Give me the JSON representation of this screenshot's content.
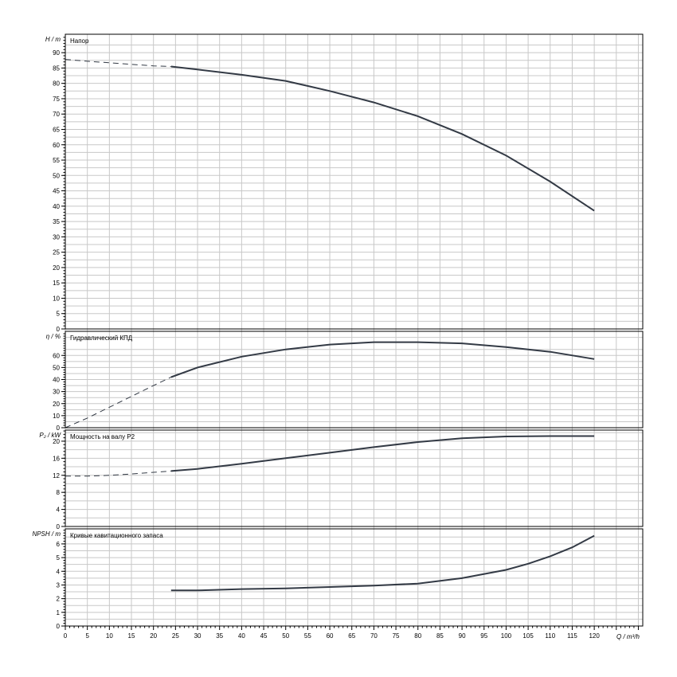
{
  "chart_data": [
    {
      "type": "line",
      "title": "Напор",
      "ylabel": "H / m",
      "ylim": [
        0,
        96
      ],
      "yticks": [
        0,
        5,
        10,
        15,
        20,
        25,
        30,
        35,
        40,
        45,
        50,
        55,
        60,
        65,
        70,
        75,
        80,
        85,
        90
      ],
      "series": [
        {
          "style": "dashed",
          "x": [
            0,
            5,
            10,
            15,
            20,
            24
          ],
          "y": [
            87.8,
            87.2,
            86.7,
            86.2,
            85.7,
            85.5
          ]
        },
        {
          "style": "solid",
          "x": [
            24,
            30,
            40,
            50,
            60,
            70,
            80,
            90,
            100,
            110,
            120
          ],
          "y": [
            85.5,
            84.5,
            82.8,
            80.8,
            77.5,
            73.8,
            69.3,
            63.5,
            56.5,
            48.0,
            38.5
          ]
        }
      ]
    },
    {
      "type": "line",
      "title": "Гидравлический КПД",
      "ylabel": "η / %",
      "ylim": [
        0,
        80
      ],
      "yticks": [
        0,
        10,
        20,
        30,
        40,
        50,
        60
      ],
      "series": [
        {
          "style": "dashed",
          "x": [
            0,
            5,
            10,
            15,
            20,
            24
          ],
          "y": [
            0,
            8,
            17,
            26,
            35,
            42
          ]
        },
        {
          "style": "solid",
          "x": [
            24,
            30,
            40,
            50,
            60,
            70,
            80,
            90,
            100,
            110,
            120
          ],
          "y": [
            42,
            50,
            59,
            65,
            69,
            71,
            71,
            70,
            67,
            63,
            57
          ]
        }
      ]
    },
    {
      "type": "line",
      "title": "Мощность на валу P2",
      "ylabel": "P₂ / kW",
      "ylim": [
        0,
        22.6
      ],
      "yticks": [
        0,
        4,
        8,
        12,
        16,
        20
      ],
      "series": [
        {
          "style": "dashed",
          "x": [
            0,
            5,
            10,
            15,
            20,
            24
          ],
          "y": [
            11.8,
            11.8,
            12.0,
            12.3,
            12.7,
            13.0
          ]
        },
        {
          "style": "solid",
          "x": [
            24,
            30,
            40,
            50,
            60,
            70,
            80,
            90,
            100,
            110,
            120
          ],
          "y": [
            13.0,
            13.5,
            14.7,
            16.0,
            17.3,
            18.6,
            19.8,
            20.7,
            21.1,
            21.2,
            21.2
          ]
        }
      ]
    },
    {
      "type": "line",
      "title": "Кривые кавитационного запаса",
      "ylabel": "NPSH / m",
      "ylim": [
        0,
        7.1
      ],
      "yticks": [
        0,
        1,
        2,
        3,
        4,
        5,
        6
      ],
      "series": [
        {
          "style": "solid",
          "x": [
            24,
            30,
            40,
            50,
            60,
            70,
            80,
            90,
            100,
            105,
            110,
            115,
            120
          ],
          "y": [
            2.6,
            2.6,
            2.7,
            2.75,
            2.85,
            2.95,
            3.1,
            3.5,
            4.1,
            4.55,
            5.1,
            5.75,
            6.6
          ]
        }
      ]
    }
  ],
  "x_axis": {
    "label": "Q / m³/h",
    "xlim": [
      0,
      131
    ],
    "ticks": [
      0,
      5,
      10,
      15,
      20,
      25,
      30,
      35,
      40,
      45,
      50,
      55,
      60,
      65,
      70,
      75,
      80,
      85,
      90,
      95,
      100,
      105,
      110,
      115,
      120
    ]
  }
}
